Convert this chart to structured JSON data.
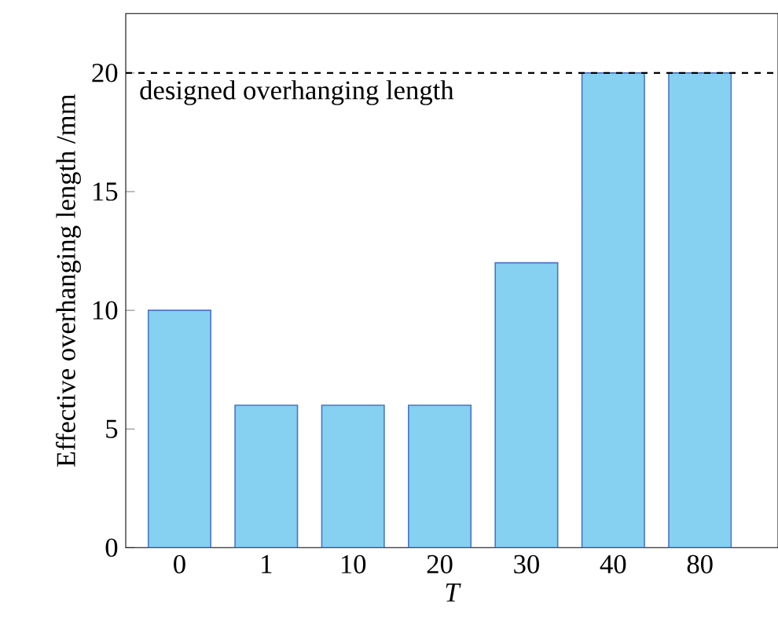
{
  "chart_data": {
    "type": "bar",
    "xlabel": "T",
    "ylabel": "Effective overhanging length /mm",
    "categories": [
      "0",
      "1",
      "10",
      "20",
      "30",
      "40",
      "80"
    ],
    "values": [
      10,
      6,
      6,
      6,
      12,
      20,
      20
    ],
    "color": "#86d0f2",
    "ylim": [
      0,
      22.5
    ],
    "yticks": [
      0,
      5,
      10,
      15,
      20
    ],
    "ref_lines": [
      {
        "axis": "y",
        "value": 20,
        "label": "designed overhanging length",
        "line_style": "dashed",
        "color": "#000000"
      }
    ],
    "grid": false
  }
}
